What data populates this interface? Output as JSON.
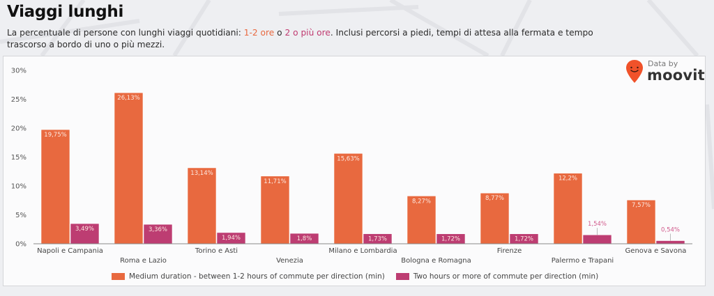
{
  "header": {
    "title": "Viaggi lunghi",
    "subtitle_pre": "La percentuale di persone con lunghi viaggi quotidiani: ",
    "subtitle_hl1": "1-2 ore",
    "subtitle_mid": " o ",
    "subtitle_hl2": "2 o più ore",
    "subtitle_post": ". Inclusi percorsi a piedi, tempi di attesa alla fermata e tempo trascorso a bordo di uno o più mezzi."
  },
  "logo": {
    "prefix": "Data by",
    "name": "moovit",
    "icon": "moovit-pin-icon",
    "color": "#f0522a"
  },
  "colors": {
    "medium": "#e8693f",
    "long": "#bd3d72",
    "long_outside_label": "#d0588a"
  },
  "chart_data": {
    "type": "bar",
    "title": "",
    "xlabel": "",
    "ylabel": "",
    "ylim": [
      0,
      30
    ],
    "yticks": [
      0,
      5,
      10,
      15,
      20,
      25,
      30
    ],
    "ytick_labels": [
      "0%",
      "5%",
      "10%",
      "15%",
      "20%",
      "25%",
      "30%"
    ],
    "grid": false,
    "legend_position": "bottom",
    "categories": [
      "Napoli e Campania",
      "Roma e Lazio",
      "Torino e Asti",
      "Venezia",
      "Milano e Lombardia",
      "Bologna e Romagna",
      "Firenze",
      "Palermo e Trapani",
      "Genova e Savona"
    ],
    "series": [
      {
        "name": "Medium duration - between 1-2 hours of commute per direction (min)",
        "values": [
          19.75,
          26.13,
          13.14,
          11.71,
          15.63,
          8.27,
          8.77,
          12.2,
          7.57
        ],
        "labels": [
          "19,75%",
          "26,13%",
          "13,14%",
          "11,71%",
          "15,63%",
          "8,27%",
          "8,77%",
          "12,2%",
          "7,57%"
        ]
      },
      {
        "name": "Two hours or more of commute per direction (min)",
        "values": [
          3.49,
          3.36,
          1.94,
          1.8,
          1.73,
          1.72,
          1.72,
          1.54,
          0.54
        ],
        "labels": [
          "3,49%",
          "3,36%",
          "1,94%",
          "1,8%",
          "1,73%",
          "1,72%",
          "1,72%",
          "1,54%",
          "0,54%"
        ]
      }
    ]
  }
}
